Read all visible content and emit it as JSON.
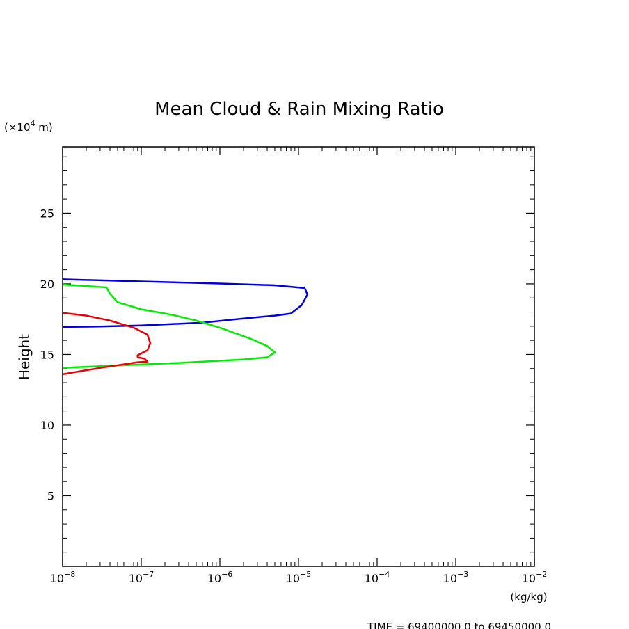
{
  "chart_data": {
    "type": "line",
    "title": "Mean Cloud & Rain Mixing Ratio",
    "ylabel": "Height",
    "y_unit_prefix": "(×10",
    "y_unit_exp": "4",
    "y_unit_suffix": " m)",
    "x_unit": "(kg/kg)",
    "x_scale": "log",
    "xlim": [
      1e-08,
      0.01
    ],
    "ylim": [
      0,
      29.7
    ],
    "x_ticks": [
      {
        "base": "10",
        "exp": "−8",
        "value": 1e-08
      },
      {
        "base": "10",
        "exp": "−7",
        "value": 1e-07
      },
      {
        "base": "10",
        "exp": "−6",
        "value": 1e-06
      },
      {
        "base": "10",
        "exp": "−5",
        "value": 1e-05
      },
      {
        "base": "10",
        "exp": "−4",
        "value": 0.0001
      },
      {
        "base": "10",
        "exp": "−3",
        "value": 0.001
      },
      {
        "base": "10",
        "exp": "−2",
        "value": 0.01
      }
    ],
    "y_ticks": [
      {
        "label": "5",
        "value": 5
      },
      {
        "label": "10",
        "value": 10
      },
      {
        "label": "15",
        "value": 15
      },
      {
        "label": "20",
        "value": 20
      },
      {
        "label": "25",
        "value": 25
      }
    ],
    "footer": "TIME = 69400000.0 to 69450000.0",
    "series": [
      {
        "color": "#0000dd",
        "points": [
          [
            1e-08,
            20.32
          ],
          [
            1e-07,
            20.17
          ],
          [
            1e-06,
            20.02
          ],
          [
            5e-06,
            19.9
          ],
          [
            1.2e-05,
            19.7
          ],
          [
            1.3e-05,
            19.25
          ],
          [
            1.1e-05,
            18.5
          ],
          [
            8e-06,
            17.9
          ],
          [
            5e-06,
            17.75
          ],
          [
            2e-06,
            17.55
          ],
          [
            6e-07,
            17.25
          ],
          [
            1e-07,
            17.05
          ],
          [
            3e-08,
            16.98
          ],
          [
            1e-08,
            16.95
          ]
        ]
      },
      {
        "color": "#00ee00",
        "points": [
          [
            1e-08,
            19.95
          ],
          [
            2e-08,
            19.85
          ],
          [
            3.6e-08,
            19.75
          ],
          [
            4e-08,
            19.3
          ],
          [
            5e-08,
            18.7
          ],
          [
            1e-07,
            18.2
          ],
          [
            2.5e-07,
            17.8
          ],
          [
            5e-07,
            17.4
          ],
          [
            1e-06,
            16.9
          ],
          [
            2.5e-06,
            16.1
          ],
          [
            4e-06,
            15.6
          ],
          [
            5e-06,
            15.15
          ],
          [
            4e-06,
            14.8
          ],
          [
            2e-06,
            14.65
          ],
          [
            3e-07,
            14.4
          ],
          [
            4e-08,
            14.2
          ],
          [
            1.5e-08,
            14.1
          ],
          [
            1e-08,
            14.05
          ]
        ]
      },
      {
        "color": "#ee0000",
        "points": [
          [
            1e-08,
            17.95
          ],
          [
            2e-08,
            17.75
          ],
          [
            4e-08,
            17.4
          ],
          [
            8e-08,
            16.9
          ],
          [
            1.2e-07,
            16.4
          ],
          [
            1.3e-07,
            15.8
          ],
          [
            1.2e-07,
            15.3
          ],
          [
            9e-08,
            14.95
          ],
          [
            9e-08,
            14.8
          ],
          [
            1.1e-07,
            14.7
          ],
          [
            1.2e-07,
            14.5
          ],
          [
            9e-08,
            14.45
          ],
          [
            3e-08,
            14.05
          ],
          [
            1e-08,
            13.6
          ]
        ]
      }
    ]
  }
}
